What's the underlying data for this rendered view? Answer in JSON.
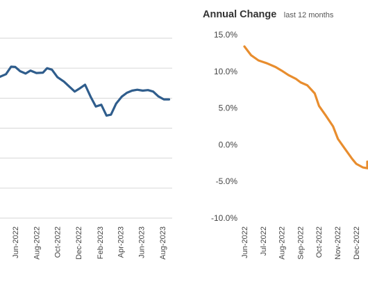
{
  "colors": {
    "left_line": "#2f5d8c",
    "right_line": "#e88d2e",
    "grid": "#d6d6d6",
    "tick_text": "#444444",
    "title_text": "#333333"
  },
  "chart_data": [
    {
      "type": "line",
      "title": "",
      "xlabel": "",
      "ylabel": "",
      "grid": true,
      "categories": [
        "Jun-2022",
        "Aug-2022",
        "Oct-2022",
        "Dec-2022",
        "Feb-2023",
        "Apr-2023",
        "Jun-2023",
        "Aug-2023"
      ],
      "ylim": [
        0,
        6
      ],
      "series": [
        {
          "values": [
            {
              "x": "2022-04-15",
              "y": 4.7
            },
            {
              "x": "2022-05-05",
              "y": 4.8
            },
            {
              "x": "2022-05-20",
              "y": 5.05
            },
            {
              "x": "2022-06-01",
              "y": 5.04
            },
            {
              "x": "2022-06-15",
              "y": 4.9
            },
            {
              "x": "2022-07-01",
              "y": 4.82
            },
            {
              "x": "2022-07-15",
              "y": 4.92
            },
            {
              "x": "2022-08-01",
              "y": 4.84
            },
            {
              "x": "2022-08-20",
              "y": 4.85
            },
            {
              "x": "2022-09-01",
              "y": 5.0
            },
            {
              "x": "2022-09-15",
              "y": 4.95
            },
            {
              "x": "2022-10-01",
              "y": 4.7
            },
            {
              "x": "2022-10-20",
              "y": 4.55
            },
            {
              "x": "2022-11-05",
              "y": 4.38
            },
            {
              "x": "2022-11-20",
              "y": 4.22
            },
            {
              "x": "2022-12-05",
              "y": 4.33
            },
            {
              "x": "2022-12-20",
              "y": 4.45
            },
            {
              "x": "2023-01-05",
              "y": 4.05
            },
            {
              "x": "2023-01-20",
              "y": 3.72
            },
            {
              "x": "2023-02-05",
              "y": 3.78
            },
            {
              "x": "2023-02-20",
              "y": 3.42
            },
            {
              "x": "2023-03-05",
              "y": 3.45
            },
            {
              "x": "2023-03-20",
              "y": 3.82
            },
            {
              "x": "2023-04-05",
              "y": 4.05
            },
            {
              "x": "2023-04-20",
              "y": 4.18
            },
            {
              "x": "2023-05-05",
              "y": 4.25
            },
            {
              "x": "2023-05-20",
              "y": 4.28
            },
            {
              "x": "2023-06-05",
              "y": 4.25
            },
            {
              "x": "2023-06-20",
              "y": 4.27
            },
            {
              "x": "2023-07-05",
              "y": 4.22
            },
            {
              "x": "2023-07-20",
              "y": 4.06
            },
            {
              "x": "2023-08-05",
              "y": 3.96
            },
            {
              "x": "2023-08-20",
              "y": 3.96
            }
          ]
        }
      ]
    },
    {
      "type": "line",
      "title": "Annual Change",
      "subtitle": "last 12 months",
      "xlabel": "",
      "ylabel": "",
      "grid": false,
      "categories": [
        "Jun-2022",
        "Jul-2022",
        "Aug-2022",
        "Sep-2022",
        "Oct-2022",
        "Nov-2022",
        "Dec-2022"
      ],
      "yticks": [
        "15.0%",
        "10.0%",
        "5.0%",
        "0.0%",
        "-5.0%",
        "-10.0%"
      ],
      "ylim": [
        -10,
        15
      ],
      "series": [
        {
          "values": [
            {
              "x": "2022-06-01",
              "y": 13.4
            },
            {
              "x": "2022-06-12",
              "y": 12.2
            },
            {
              "x": "2022-06-24",
              "y": 11.5
            },
            {
              "x": "2022-07-08",
              "y": 11.1
            },
            {
              "x": "2022-07-22",
              "y": 10.6
            },
            {
              "x": "2022-08-01",
              "y": 10.1
            },
            {
              "x": "2022-08-12",
              "y": 9.5
            },
            {
              "x": "2022-08-24",
              "y": 9.0
            },
            {
              "x": "2022-09-01",
              "y": 8.5
            },
            {
              "x": "2022-09-12",
              "y": 8.1
            },
            {
              "x": "2022-09-24",
              "y": 7.0
            },
            {
              "x": "2022-10-01",
              "y": 5.3
            },
            {
              "x": "2022-10-12",
              "y": 4.0
            },
            {
              "x": "2022-10-24",
              "y": 2.5
            },
            {
              "x": "2022-11-01",
              "y": 0.8
            },
            {
              "x": "2022-11-12",
              "y": -0.5
            },
            {
              "x": "2022-11-24",
              "y": -1.9
            },
            {
              "x": "2022-12-01",
              "y": -2.6
            },
            {
              "x": "2022-12-12",
              "y": -3.1
            },
            {
              "x": "2022-12-24",
              "y": -3.2
            },
            {
              "x": "2022-12-31",
              "y": -2.3
            }
          ]
        }
      ]
    }
  ]
}
